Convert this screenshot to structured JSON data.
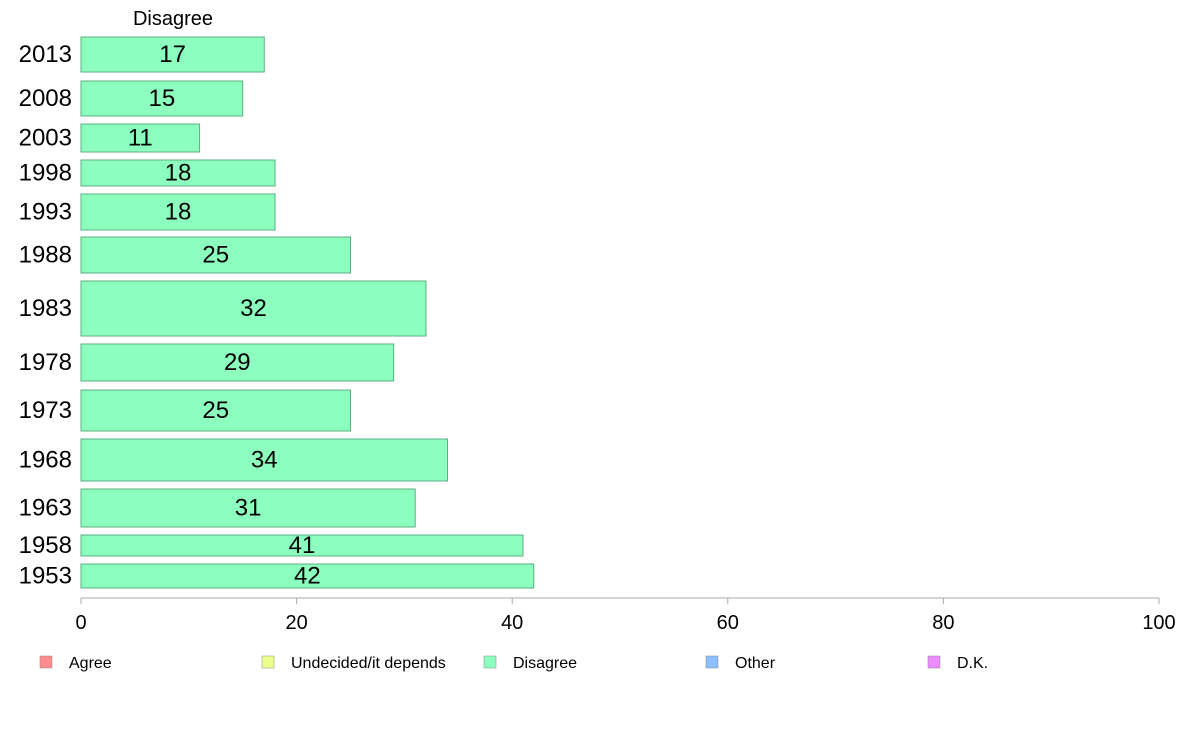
{
  "chart_data": {
    "type": "bar",
    "orientation": "horizontal",
    "panel_title": "Disagree",
    "categories": [
      "2013",
      "2008",
      "2003",
      "1998",
      "1993",
      "1988",
      "1983",
      "1978",
      "1973",
      "1968",
      "1963",
      "1958",
      "1953"
    ],
    "values": [
      17,
      15,
      11,
      18,
      18,
      25,
      32,
      29,
      25,
      34,
      31,
      41,
      42
    ],
    "value_labels": [
      "17",
      "15",
      "11",
      "18",
      "18",
      "25",
      "32",
      "29",
      "25",
      "34",
      "31",
      "41",
      "42"
    ],
    "bar_color": "#8cffbf",
    "bar_stroke": "#5cae80",
    "xlim": [
      0,
      100
    ],
    "x_ticks": [
      0,
      20,
      40,
      60,
      80,
      100
    ],
    "x_tick_labels": [
      "0",
      "20",
      "40",
      "60",
      "80",
      "100"
    ],
    "xlabel": "",
    "ylabel": "",
    "grid": false,
    "legend_position": "bottom",
    "legend": [
      {
        "label": "Agree",
        "color": "#ff8c8c"
      },
      {
        "label": "Undecided/it depends",
        "color": "#ecff8c"
      },
      {
        "label": "Disagree",
        "color": "#8cffbf"
      },
      {
        "label": "Other",
        "color": "#8cbfff"
      },
      {
        "label": "D.K.",
        "color": "#ec8cff"
      }
    ]
  }
}
